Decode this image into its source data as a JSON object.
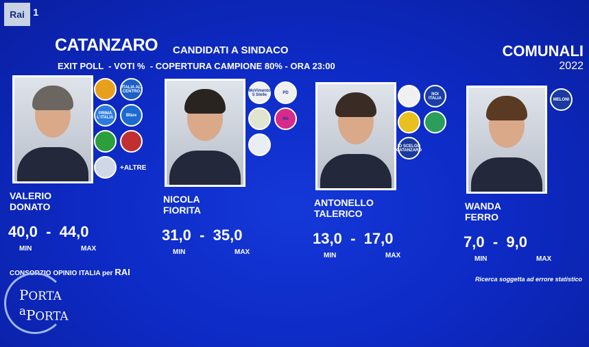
{
  "channel": {
    "logo": "Rai",
    "number": "1"
  },
  "header": {
    "city": "CATANZARO",
    "subtitle": "CANDIDATI A SINDACO",
    "info": "EXIT POLL  - VOTI %  - COPERTURA CAMPIONE 80% - ORA 23:00",
    "election": "COMUNALI",
    "year": "2022"
  },
  "labels": {
    "min": "MIN",
    "max": "MAX",
    "dash": "-"
  },
  "candidates": [
    {
      "first": "VALERIO",
      "last": "DONATO",
      "min": "40,0",
      "max": "44,0",
      "hair": "#6b6660",
      "logos": [
        {
          "t": "",
          "c": "#e8a01c"
        },
        {
          "t": "ITALIA AL CENTRO",
          "c": "#1c5fc8"
        },
        {
          "t": "PRIMA L'ITALIA",
          "c": "#2a7ae0"
        },
        {
          "t": "Bfare",
          "c": "#1d6ad0"
        },
        {
          "t": "",
          "c": "#2c9e3c"
        },
        {
          "t": "",
          "c": "#c03030"
        },
        {
          "t": "",
          "c": "#d0d8e8"
        }
      ],
      "others": "+ALTRE"
    },
    {
      "first": "NICOLA",
      "last": "FIORITA",
      "min": "31,0",
      "max": "35,0",
      "hair": "#2a2420",
      "logos": [
        {
          "t": "MoVimento 5 Stelle",
          "c": "#f0f0f0"
        },
        {
          "t": "PD",
          "c": "#f0f0f0"
        },
        {
          "t": "",
          "c": "#e0e4d0"
        },
        {
          "t": "Mò",
          "c": "#d82a8a"
        },
        {
          "t": "",
          "c": "#e8eef4"
        }
      ]
    },
    {
      "first": "ANTONELLO",
      "last": "TALERICO",
      "min": "13,0",
      "max": "17,0",
      "hair": "#3a2c24",
      "logos": [
        {
          "t": "",
          "c": "#f0f0f0"
        },
        {
          "t": "NOI ITALIA",
          "c": "#1a3ea8"
        },
        {
          "t": "",
          "c": "#e8c020"
        },
        {
          "t": "",
          "c": "#2a9e5a"
        },
        {
          "t": "IO SCELGO CATANZARO",
          "c": "#1a3a9a"
        }
      ]
    },
    {
      "first": "WANDA",
      "last": "FERRO",
      "min": "7,0",
      "max": "9,0",
      "hair": "#5a3a22",
      "logos": [
        {
          "t": "MELONI",
          "c": "#1a3aa0"
        }
      ]
    }
  ],
  "footer": {
    "source_prefix": "CONSORZIO OPINIO ITALIA per ",
    "source_brand": "RAI",
    "disclaimer": "Ricerca soggetta ad errore statistico",
    "show_logo": "PORTA a PORTA"
  }
}
